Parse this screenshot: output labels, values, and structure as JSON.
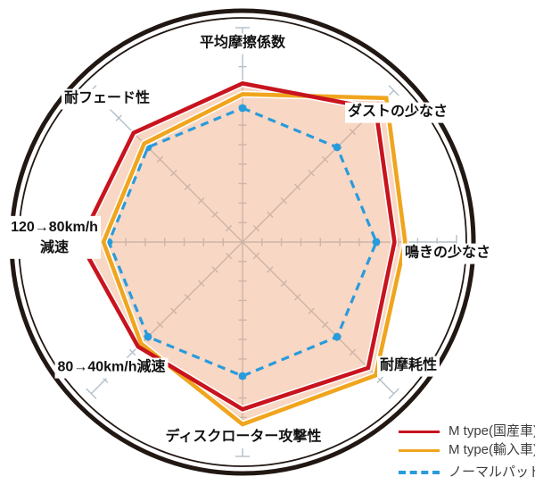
{
  "chart_data": {
    "type": "radar",
    "title": "",
    "categories": [
      "平均摩擦係数",
      "ダストの少なさ",
      "鳴きの少なさ",
      "耐摩耗性",
      "ディスクローター攻撃性",
      "80→40km/h減速",
      "120→80km/h減速",
      "耐フェード性"
    ],
    "scale_max": 10,
    "axis_divisions": 11,
    "grid": true,
    "legend_position": "bottom-right",
    "series": [
      {
        "name": "M type(国産車)",
        "color": "#c8141e",
        "style": "solid",
        "values": [
          7.4,
          8.8,
          7.1,
          8.3,
          7.8,
          6.9,
          7.6,
          7.2
        ]
      },
      {
        "name": "M type(輸入車)",
        "color": "#f0a51e",
        "style": "solid",
        "values": [
          6.9,
          9.5,
          7.6,
          8.8,
          8.5,
          6.7,
          6.5,
          6.5
        ]
      },
      {
        "name": "ノーマルパッド",
        "color": "#289bdc",
        "style": "dashed",
        "values": [
          6.25,
          6.25,
          6.25,
          6.25,
          6.25,
          6.25,
          6.25,
          6.25
        ]
      }
    ],
    "fill_color": "#f0a87e",
    "fill_opacity": 0.45,
    "grid_color": "#b3bfc9",
    "ring_color": "#221813"
  },
  "axis_labels": {
    "n": "平均摩擦係数",
    "ne": "ダストの少なさ",
    "e": "鳴きの少なさ",
    "se": "耐摩耗性",
    "s": "ディスクローター攻撃性",
    "sw": "80→40km/h減速",
    "w1": "120→80km/h",
    "w2": "減速",
    "nw": "耐フェード性"
  },
  "legend": {
    "items": [
      {
        "label": "M type(国産車)",
        "color": "#c8141e",
        "dashed": false
      },
      {
        "label": "M type(輸入車)",
        "color": "#f0a51e",
        "dashed": false
      },
      {
        "label": "ノーマルパッド",
        "color": "#289bdc",
        "dashed": true
      }
    ]
  }
}
